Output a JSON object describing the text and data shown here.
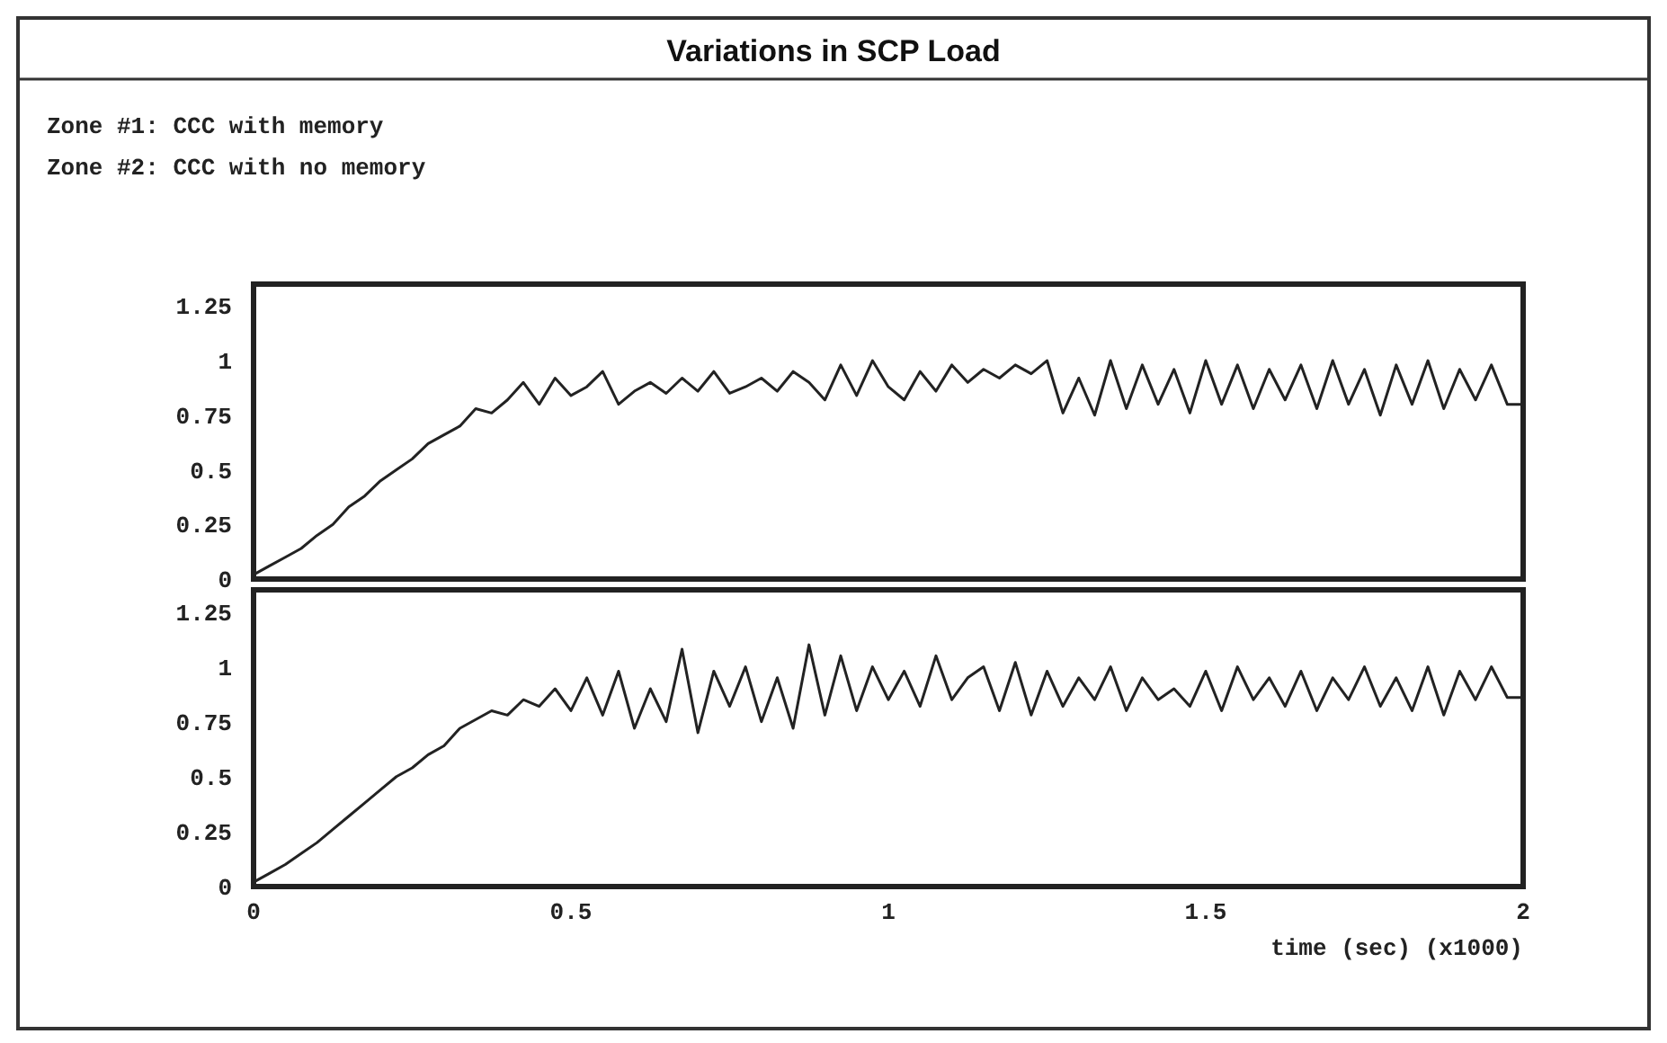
{
  "chart_data": [
    {
      "type": "line",
      "title": "Variations in SCP Load",
      "annotations": [
        "Zone #1: CCC with memory"
      ],
      "tick_labels": "y",
      "grid": false,
      "marker": "none",
      "line_style": "solid",
      "x": [
        0,
        0.025,
        0.05,
        0.075,
        0.1,
        0.125,
        0.15,
        0.175,
        0.2,
        0.225,
        0.25,
        0.275,
        0.3,
        0.325,
        0.35,
        0.375,
        0.4,
        0.425,
        0.45,
        0.475,
        0.5,
        0.525,
        0.55,
        0.575,
        0.6,
        0.625,
        0.65,
        0.675,
        0.7,
        0.725,
        0.75,
        0.775,
        0.8,
        0.825,
        0.85,
        0.875,
        0.9,
        0.925,
        0.95,
        0.975,
        1,
        1.025,
        1.05,
        1.075,
        1.1,
        1.125,
        1.15,
        1.175,
        1.2,
        1.225,
        1.25,
        1.275,
        1.3,
        1.325,
        1.35,
        1.375,
        1.4,
        1.425,
        1.45,
        1.475,
        1.5,
        1.525,
        1.55,
        1.575,
        1.6,
        1.625,
        1.65,
        1.675,
        1.7,
        1.725,
        1.75,
        1.775,
        1.8,
        1.825,
        1.85,
        1.875,
        1.9,
        1.925,
        1.95,
        1.975,
        2
      ],
      "xlim": [
        0,
        2
      ],
      "ylim": [
        0,
        1.35
      ],
      "yticks": [
        0,
        0.25,
        0.5,
        0.75,
        1,
        1.25
      ],
      "series": [
        {
          "color": "#222222",
          "values": [
            0.02,
            0.06,
            0.1,
            0.14,
            0.2,
            0.25,
            0.33,
            0.38,
            0.45,
            0.5,
            0.55,
            0.62,
            0.66,
            0.7,
            0.78,
            0.76,
            0.82,
            0.9,
            0.8,
            0.92,
            0.84,
            0.88,
            0.95,
            0.8,
            0.86,
            0.9,
            0.85,
            0.92,
            0.86,
            0.95,
            0.85,
            0.88,
            0.92,
            0.86,
            0.95,
            0.9,
            0.82,
            0.98,
            0.84,
            1.0,
            0.88,
            0.82,
            0.95,
            0.86,
            0.98,
            0.9,
            0.96,
            0.92,
            0.98,
            0.94,
            1.0,
            0.76,
            0.92,
            0.75,
            1.0,
            0.78,
            0.98,
            0.8,
            0.96,
            0.76,
            1.0,
            0.8,
            0.98,
            0.78,
            0.96,
            0.82,
            0.98,
            0.78,
            1.0,
            0.8,
            0.96,
            0.75,
            0.98,
            0.8,
            1.0,
            0.78,
            0.96,
            0.82,
            0.98,
            0.8,
            0.8
          ]
        }
      ]
    },
    {
      "type": "line",
      "xlabel": "time (sec) (x1000)",
      "annotations": [
        "Zone #2: CCC with no memory"
      ],
      "grid": false,
      "marker": "none",
      "line_style": "solid",
      "x": [
        0,
        0.025,
        0.05,
        0.075,
        0.1,
        0.125,
        0.15,
        0.175,
        0.2,
        0.225,
        0.25,
        0.275,
        0.3,
        0.325,
        0.35,
        0.375,
        0.4,
        0.425,
        0.45,
        0.475,
        0.5,
        0.525,
        0.55,
        0.575,
        0.6,
        0.625,
        0.65,
        0.675,
        0.7,
        0.725,
        0.75,
        0.775,
        0.8,
        0.825,
        0.85,
        0.875,
        0.9,
        0.925,
        0.95,
        0.975,
        1,
        1.025,
        1.05,
        1.075,
        1.1,
        1.125,
        1.15,
        1.175,
        1.2,
        1.225,
        1.25,
        1.275,
        1.3,
        1.325,
        1.35,
        1.375,
        1.4,
        1.425,
        1.45,
        1.475,
        1.5,
        1.525,
        1.55,
        1.575,
        1.6,
        1.625,
        1.65,
        1.675,
        1.7,
        1.725,
        1.75,
        1.775,
        1.8,
        1.825,
        1.85,
        1.875,
        1.9,
        1.925,
        1.95,
        1.975,
        2
      ],
      "xlim": [
        0,
        2
      ],
      "xticks": [
        0,
        0.5,
        1,
        1.5,
        2
      ],
      "ylim": [
        0,
        1.35
      ],
      "yticks": [
        0,
        0.25,
        0.5,
        0.75,
        1,
        1.25
      ],
      "series": [
        {
          "color": "#222222",
          "values": [
            0.02,
            0.06,
            0.1,
            0.15,
            0.2,
            0.26,
            0.32,
            0.38,
            0.44,
            0.5,
            0.54,
            0.6,
            0.64,
            0.72,
            0.76,
            0.8,
            0.78,
            0.85,
            0.82,
            0.9,
            0.8,
            0.95,
            0.78,
            0.98,
            0.72,
            0.9,
            0.75,
            1.08,
            0.7,
            0.98,
            0.82,
            1.0,
            0.75,
            0.95,
            0.72,
            1.1,
            0.78,
            1.05,
            0.8,
            1.0,
            0.85,
            0.98,
            0.82,
            1.05,
            0.85,
            0.95,
            1.0,
            0.8,
            1.02,
            0.78,
            0.98,
            0.82,
            0.95,
            0.85,
            1.0,
            0.8,
            0.95,
            0.85,
            0.9,
            0.82,
            0.98,
            0.8,
            1.0,
            0.85,
            0.95,
            0.82,
            0.98,
            0.8,
            0.95,
            0.85,
            1.0,
            0.82,
            0.95,
            0.8,
            1.0,
            0.78,
            0.98,
            0.85,
            1.0,
            0.86,
            0.86
          ]
        }
      ]
    }
  ]
}
